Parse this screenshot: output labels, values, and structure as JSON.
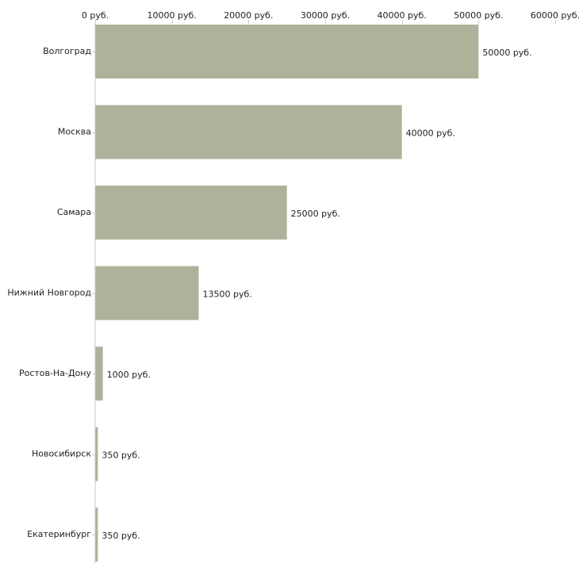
{
  "chart_data": {
    "type": "bar",
    "orientation": "horizontal",
    "title": "",
    "xlabel": "",
    "ylabel": "",
    "unit": "руб.",
    "xlim": [
      0,
      60000
    ],
    "ticks": [
      0,
      10000,
      20000,
      30000,
      40000,
      50000,
      60000
    ],
    "tick_labels": [
      "0 руб.",
      "10000 руб.",
      "20000 руб.",
      "30000 руб.",
      "40000 руб.",
      "50000 руб.",
      "60000 руб."
    ],
    "categories": [
      "Волгоград",
      "Москва",
      "Самара",
      "Нижний Новгород",
      "Ростов-На-Дону",
      "Новосибирск",
      "Екатеринбург"
    ],
    "values": [
      50000,
      40000,
      25000,
      13500,
      1000,
      350,
      350
    ],
    "value_labels": [
      "50000 руб.",
      "40000 руб.",
      "25000 руб.",
      "13500 руб.",
      "1000 руб.",
      "350 руб.",
      "350 руб."
    ],
    "bar_color": "#adb39a",
    "axis_color": "#c8c8c8",
    "grid": false,
    "legend": "none"
  }
}
